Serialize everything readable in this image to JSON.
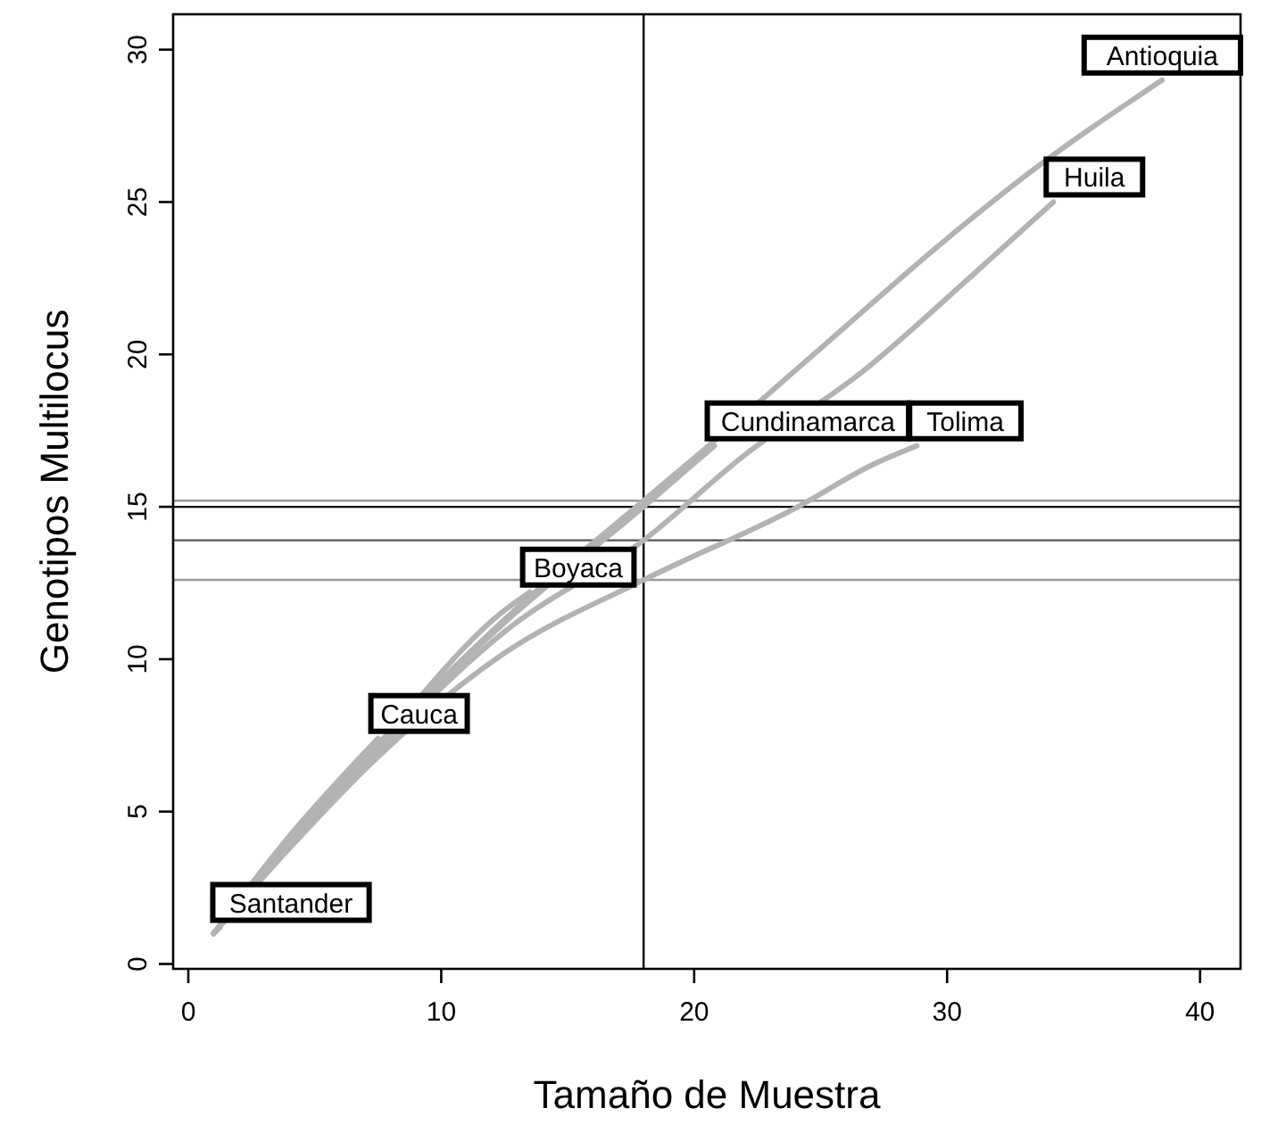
{
  "chart_data": {
    "type": "line",
    "xlabel": "Tamaño de Muestra",
    "ylabel": "Genotipos Multilocus",
    "xlim": [
      -0.6,
      41.6
    ],
    "ylim": [
      -0.16,
      31.16
    ],
    "xticks": [
      0,
      10,
      20,
      30,
      40
    ],
    "yticks": [
      0,
      5,
      10,
      15,
      20,
      25,
      30
    ],
    "grid": false,
    "marker": "none",
    "line_style": "solid",
    "series": [
      {
        "name": "Antioquia",
        "color": "#b3b3b3",
        "x": [
          1,
          4,
          7.5,
          12.5,
          18,
          20,
          25,
          30,
          33,
          38.5
        ],
        "values": [
          1,
          4,
          7.2,
          11.3,
          15.2,
          16.6,
          20.2,
          23.8,
          25.8,
          29
        ]
      },
      {
        "name": "Huila",
        "color": "#b3b3b3",
        "x": [
          1,
          4,
          7.5,
          12.5,
          18,
          22,
          26.6,
          31,
          34.2
        ],
        "values": [
          1,
          3.9,
          7,
          10.9,
          13.9,
          16.7,
          19.4,
          22.6,
          25
        ]
      },
      {
        "name": "Cundinamarca",
        "color": "#b3b3b3",
        "x": [
          1,
          4,
          7.5,
          12.5,
          18,
          20.8
        ],
        "values": [
          1,
          4,
          7.2,
          11.2,
          15,
          17
        ]
      },
      {
        "name": "Tolima",
        "color": "#b3b3b3",
        "x": [
          1,
          4,
          7.5,
          12.5,
          18,
          24.1,
          27.1,
          28.8
        ],
        "values": [
          1,
          3.8,
          6.8,
          10.2,
          12.6,
          15,
          16.4,
          17
        ]
      },
      {
        "name": "Boyaca",
        "color": "#b3b3b3",
        "x": [
          1,
          4,
          7.5,
          12.5,
          13.5
        ],
        "values": [
          1,
          4,
          7.2,
          11.6,
          12.2
        ]
      },
      {
        "name": "Cauca",
        "color": "#b3b3b3",
        "x": [
          1,
          4,
          7.5
        ],
        "values": [
          1,
          4.2,
          7.4
        ]
      },
      {
        "name": "Santander",
        "color": "#b3b3b3",
        "x": [
          1,
          1.25
        ],
        "values": [
          1,
          1.2
        ]
      }
    ],
    "ref_lines": [
      {
        "axis": "x",
        "value": 18,
        "color": "#000000"
      },
      {
        "axis": "y",
        "value": 15.2,
        "color": "#999999"
      },
      {
        "axis": "y",
        "value": 15,
        "color": "#000000"
      },
      {
        "axis": "y",
        "value": 13.9,
        "color": "#555555"
      },
      {
        "axis": "y",
        "value": 12.6,
        "color": "#999999"
      }
    ]
  }
}
